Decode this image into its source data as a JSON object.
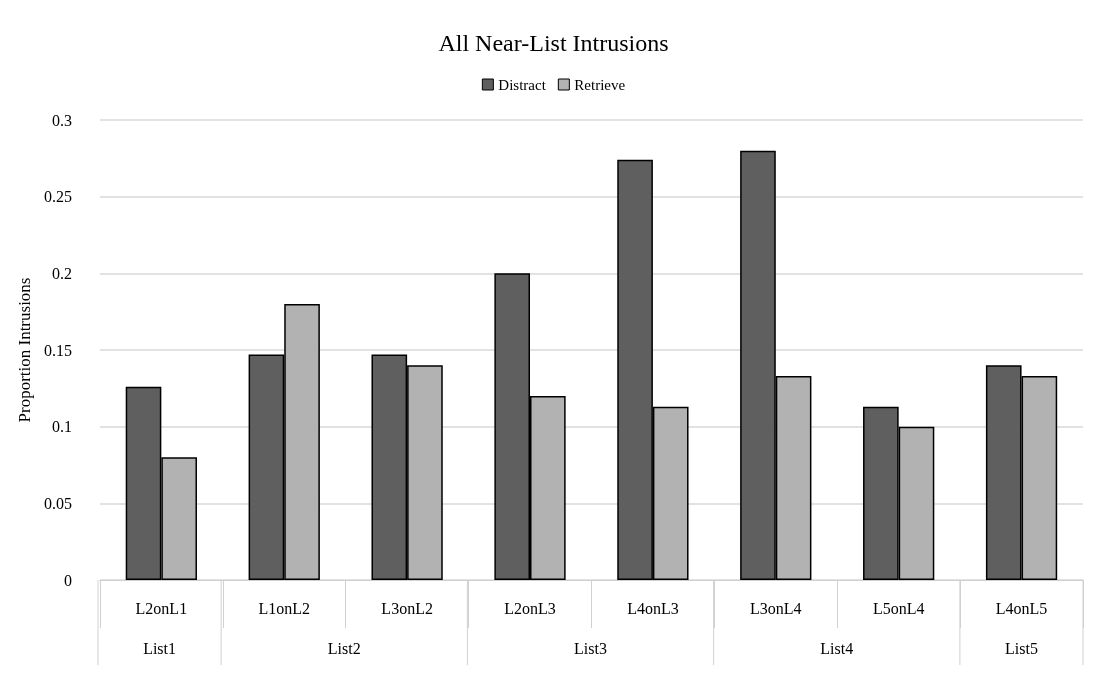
{
  "chart_data": {
    "type": "bar",
    "title": "All Near-List Intrusions",
    "ylabel": "Proportion Intrusions",
    "categories": [
      "L2onL1",
      "L1onL2",
      "L3onL2",
      "L2onL3",
      "L4onL3",
      "L3onL4",
      "L5onL4",
      "L4onL5"
    ],
    "series": [
      {
        "name": "Distract",
        "color": "#5f5f5f",
        "values": [
          0.126,
          0.147,
          0.147,
          0.2,
          0.274,
          0.28,
          0.113,
          0.14
        ]
      },
      {
        "name": "Retrieve",
        "color": "#b2b2b2",
        "values": [
          0.08,
          0.18,
          0.14,
          0.12,
          0.113,
          0.133,
          0.1,
          0.133
        ]
      }
    ],
    "annotations": [
      "List1",
      "List2",
      "List3",
      "List4",
      "List5"
    ],
    "ylim": [
      0,
      0.3
    ],
    "yticks": [
      0,
      0.05,
      0.1,
      0.15,
      0.2,
      0.25,
      0.3
    ],
    "grid": "y",
    "legend": "top"
  }
}
